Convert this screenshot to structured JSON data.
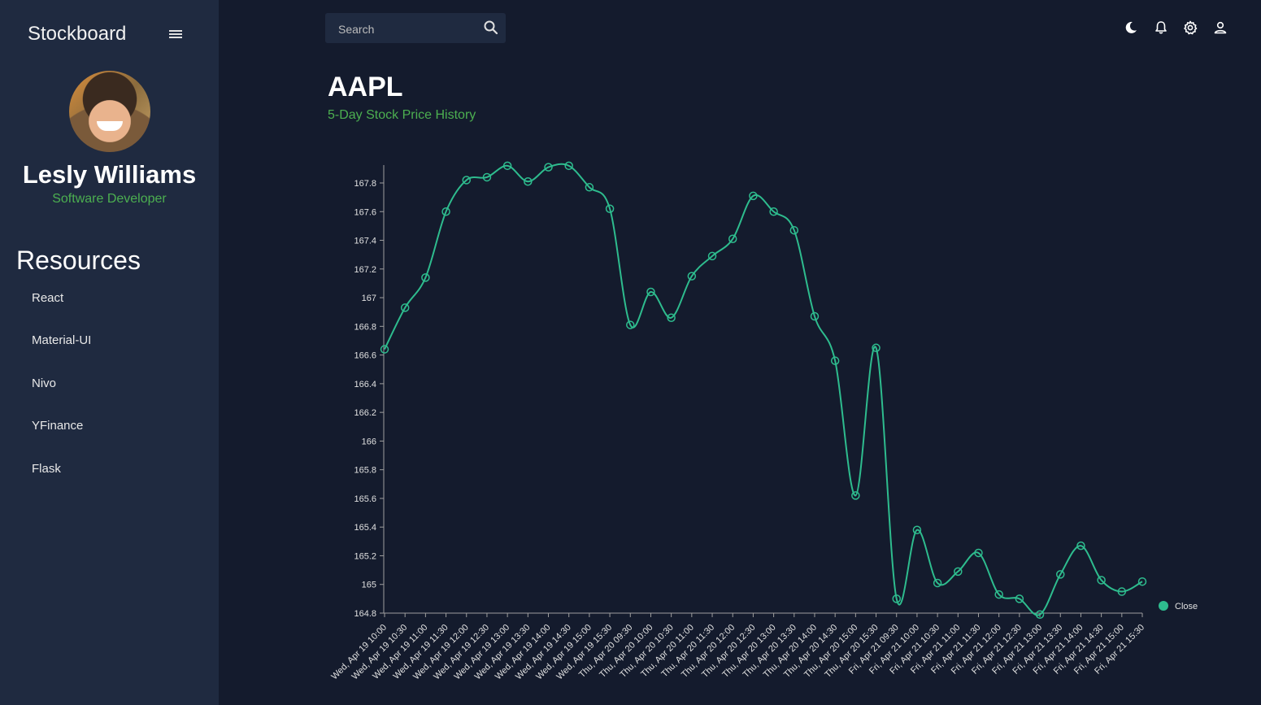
{
  "app": {
    "brand": "Stockboard"
  },
  "sidebar": {
    "user": {
      "name": "Lesly Williams",
      "role": "Software Developer"
    },
    "section_title": "Resources",
    "items": [
      {
        "label": "React"
      },
      {
        "label": "Material-UI"
      },
      {
        "label": "Nivo"
      },
      {
        "label": "YFinance"
      },
      {
        "label": "Flask"
      }
    ]
  },
  "topbar": {
    "search": {
      "placeholder": "Search",
      "value": ""
    },
    "icons": [
      "dark-mode-icon",
      "notifications-icon",
      "settings-icon",
      "profile-icon"
    ]
  },
  "main": {
    "title": "AAPL",
    "subtitle": "5-Day Stock Price History"
  },
  "colors": {
    "background": "#141b2d",
    "sidebar": "#1f2a40",
    "line": "#2ebc8e",
    "accent_green": "#4caf50"
  },
  "chart_data": {
    "type": "line",
    "x": [
      "Wed, Apr 19 10:00",
      "Wed, Apr 19 10:30",
      "Wed, Apr 19 11:00",
      "Wed, Apr 19 11:30",
      "Wed, Apr 19 12:00",
      "Wed, Apr 19 12:30",
      "Wed, Apr 19 13:00",
      "Wed, Apr 19 13:30",
      "Wed, Apr 19 14:00",
      "Wed, Apr 19 14:30",
      "Wed, Apr 19 15:00",
      "Wed, Apr 19 15:30",
      "Thu, Apr 20 09:30",
      "Thu, Apr 20 10:00",
      "Thu, Apr 20 10:30",
      "Thu, Apr 20 11:00",
      "Thu, Apr 20 11:30",
      "Thu, Apr 20 12:00",
      "Thu, Apr 20 12:30",
      "Thu, Apr 20 13:00",
      "Thu, Apr 20 13:30",
      "Thu, Apr 20 14:00",
      "Thu, Apr 20 14:30",
      "Thu, Apr 20 15:00",
      "Thu, Apr 20 15:30",
      "Fri, Apr 21 09:30",
      "Fri, Apr 21 10:00",
      "Fri, Apr 21 10:30",
      "Fri, Apr 21 11:00",
      "Fri, Apr 21 11:30",
      "Fri, Apr 21 12:00",
      "Fri, Apr 21 12:30",
      "Fri, Apr 21 13:00",
      "Fri, Apr 21 13:30",
      "Fri, Apr 21 14:00",
      "Fri, Apr 21 14:30",
      "Fri, Apr 21 15:00",
      "Fri, Apr 21 15:30"
    ],
    "series": [
      {
        "name": "Close",
        "values": [
          166.64,
          166.93,
          167.14,
          167.6,
          167.82,
          167.84,
          167.92,
          167.81,
          167.91,
          167.92,
          167.77,
          167.62,
          166.81,
          167.04,
          166.86,
          167.15,
          167.29,
          167.41,
          167.71,
          167.6,
          167.47,
          166.87,
          166.56,
          165.62,
          166.65,
          164.9,
          165.38,
          165.01,
          165.09,
          165.22,
          164.93,
          164.9,
          164.79,
          165.07,
          165.27,
          165.03,
          164.95,
          165.02
        ]
      }
    ],
    "y_ticks": [
      "164.8",
      "165",
      "165.2",
      "165.4",
      "165.6",
      "165.8",
      "166",
      "166.2",
      "166.4",
      "166.6",
      "166.8",
      "167",
      "167.2",
      "167.4",
      "167.6",
      "167.8"
    ],
    "ylim": [
      164.8,
      167.95
    ],
    "title": "",
    "xlabel": "",
    "ylabel": "",
    "legend": {
      "position": "right",
      "label": "Close"
    },
    "grid": false
  }
}
